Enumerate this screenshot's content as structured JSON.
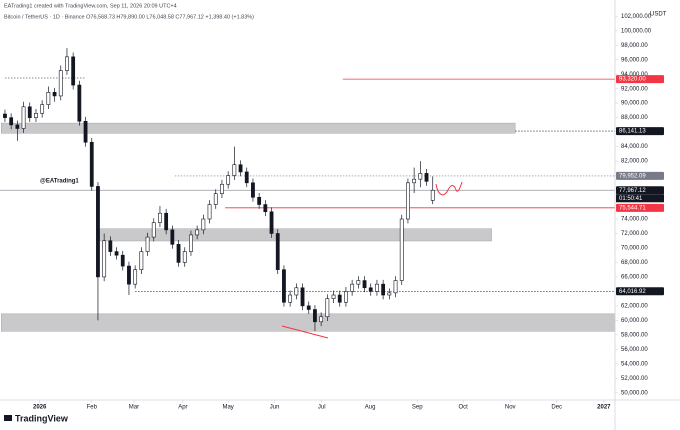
{
  "chart_data": {
    "type": "candlestick",
    "credit": "EATrading1 created with TradingView.com, Sep 11, 2026 20:09 UTC+4",
    "title": "Bitcoin / TetherUS · 1D · Binance  O76,568.73 H79,890.00 L76,048.58 C77,967.12 +1,398.40 (+1.83%)",
    "currency": "USDT",
    "watermark": "@EATrading1",
    "brand": "TradingView",
    "countdown": "01:50:41",
    "up_color": "#ffffff",
    "down_color": "#131722",
    "ohlc": [
      [
        88500,
        89100,
        87400,
        88000
      ],
      [
        88000,
        88600,
        86400,
        87000
      ],
      [
        87000,
        87600,
        84800,
        86500
      ],
      [
        86500,
        90200,
        85900,
        89500
      ],
      [
        89500,
        90100,
        87400,
        88000
      ],
      [
        88000,
        89200,
        87400,
        88600
      ],
      [
        88600,
        90400,
        88000,
        89800
      ],
      [
        89800,
        92300,
        89200,
        91500
      ],
      [
        91500,
        92100,
        90200,
        91000
      ],
      [
        91000,
        95200,
        90400,
        94500
      ],
      [
        94500,
        97600,
        93900,
        96400
      ],
      [
        96400,
        97000,
        91900,
        92500
      ],
      [
        92500,
        93100,
        86900,
        87500
      ],
      [
        87500,
        88100,
        84000,
        84600
      ],
      [
        84600,
        85200,
        77900,
        78500
      ],
      [
        78500,
        79100,
        60000,
        66000
      ],
      [
        66000,
        72000,
        65400,
        71000
      ],
      [
        71000,
        71600,
        68900,
        69500
      ],
      [
        69500,
        70100,
        68400,
        69000
      ],
      [
        69000,
        69600,
        66900,
        67500
      ],
      [
        67500,
        68100,
        63500,
        65000
      ],
      [
        65000,
        67600,
        64400,
        67000
      ],
      [
        67000,
        70100,
        66400,
        69500
      ],
      [
        69500,
        72100,
        68900,
        71500
      ],
      [
        71500,
        74100,
        70900,
        73500
      ],
      [
        73500,
        75800,
        72900,
        74800
      ],
      [
        74800,
        75400,
        71900,
        72500
      ],
      [
        72500,
        73100,
        69900,
        70500
      ],
      [
        70500,
        71100,
        67400,
        68000
      ],
      [
        68000,
        70100,
        67400,
        69500
      ],
      [
        69500,
        72400,
        68900,
        71800
      ],
      [
        71800,
        73100,
        71200,
        72500
      ],
      [
        72500,
        74600,
        71900,
        74000
      ],
      [
        74000,
        76600,
        73400,
        76000
      ],
      [
        76000,
        78100,
        75400,
        77500
      ],
      [
        77500,
        79400,
        76900,
        78800
      ],
      [
        78800,
        80600,
        78200,
        80000
      ],
      [
        80000,
        84000,
        79400,
        81500
      ],
      [
        81500,
        82100,
        79900,
        80500
      ],
      [
        80500,
        81100,
        78400,
        79000
      ],
      [
        79000,
        79600,
        76400,
        77000
      ],
      [
        77000,
        77600,
        75400,
        76000
      ],
      [
        76000,
        76600,
        74400,
        75000
      ],
      [
        75000,
        75600,
        71400,
        72000
      ],
      [
        72000,
        72600,
        66400,
        67000
      ],
      [
        67000,
        67600,
        61900,
        62500
      ],
      [
        62500,
        64100,
        61900,
        63500
      ],
      [
        63500,
        65100,
        62900,
        64500
      ],
      [
        64500,
        65100,
        61400,
        62000
      ],
      [
        62000,
        62600,
        60900,
        61500
      ],
      [
        61500,
        62100,
        58500,
        59800
      ],
      [
        59800,
        61100,
        59200,
        60500
      ],
      [
        60500,
        63600,
        59900,
        63000
      ],
      [
        63000,
        64100,
        62400,
        63500
      ],
      [
        63500,
        64100,
        61900,
        62500
      ],
      [
        62500,
        64600,
        61900,
        64000
      ],
      [
        64000,
        65600,
        63400,
        65000
      ],
      [
        65000,
        66100,
        64400,
        65500
      ],
      [
        65500,
        66100,
        63900,
        64500
      ],
      [
        64500,
        65100,
        63400,
        64000
      ],
      [
        64000,
        65600,
        63400,
        65000
      ],
      [
        65000,
        65600,
        62900,
        63500
      ],
      [
        63500,
        64400,
        62900,
        63800
      ],
      [
        63800,
        66100,
        63200,
        65500
      ],
      [
        65500,
        74600,
        64900,
        74000
      ],
      [
        74000,
        79600,
        73400,
        79000
      ],
      [
        79000,
        81100,
        77600,
        79500
      ],
      [
        79500,
        82000,
        78400,
        80300
      ],
      [
        80300,
        80900,
        78600,
        79200
      ],
      [
        76568.73,
        79890,
        76048.58,
        77967.12
      ]
    ],
    "xlim": [
      -0.8,
      98.4
    ],
    "xticks": [
      {
        "value": 5.6,
        "label": "2026"
      },
      {
        "value": 14.0,
        "label": "Feb"
      },
      {
        "value": 20.8,
        "label": "Mar"
      },
      {
        "value": 28.7,
        "label": "Apr"
      },
      {
        "value": 36.0,
        "label": "May"
      },
      {
        "value": 43.5,
        "label": "Jun"
      },
      {
        "value": 51.1,
        "label": "Jul"
      },
      {
        "value": 58.9,
        "label": "Aug"
      },
      {
        "value": 66.5,
        "label": "Sep"
      },
      {
        "value": 73.9,
        "label": "Oct"
      },
      {
        "value": 81.5,
        "label": "Nov"
      },
      {
        "value": 89.0,
        "label": "Dec"
      },
      {
        "value": 96.6,
        "label": "2027"
      }
    ],
    "ylim": [
      49000,
      104250
    ],
    "yticks": [
      {
        "value": 102000,
        "label": "102,000.00"
      },
      {
        "value": 100000,
        "label": "100,000.00"
      },
      {
        "value": 98000,
        "label": "98,000.00"
      },
      {
        "value": 96000,
        "label": "96,000.00"
      },
      {
        "value": 94000,
        "label": "94,000.00"
      },
      {
        "value": 92000,
        "label": "92,000.00"
      },
      {
        "value": 90000,
        "label": "90,000.00"
      },
      {
        "value": 88000,
        "label": "88,000.00"
      },
      {
        "value": 84000,
        "label": "84,000.00"
      },
      {
        "value": 82000,
        "label": "82,000.00"
      },
      {
        "value": 80000,
        "label": "80,000.00"
      },
      {
        "value": 74000,
        "label": "74,000.00"
      },
      {
        "value": 72000,
        "label": "72,000.00"
      },
      {
        "value": 70000,
        "label": "70,000.00"
      },
      {
        "value": 68000,
        "label": "68,000.00"
      },
      {
        "value": 66000,
        "label": "66,000.00"
      },
      {
        "value": 62000,
        "label": "62,000.00"
      },
      {
        "value": 60000,
        "label": "60,000.00"
      },
      {
        "value": 58000,
        "label": "58,000.00"
      },
      {
        "value": 56000,
        "label": "56,000.00"
      },
      {
        "value": 54000,
        "label": "54,000.00"
      },
      {
        "value": 52000,
        "label": "52,000.00"
      },
      {
        "value": 50000,
        "label": "50,000.00"
      }
    ],
    "price_lines": [
      {
        "value": 93320,
        "label": "93,320.00",
        "color": "#f23645",
        "style": "solid",
        "from": 54.5
      },
      {
        "value": 86141.13,
        "label": "86,141.13",
        "color": "#131722",
        "style": "dotted",
        "from": 82.3
      },
      {
        "value": 79952.09,
        "label": "79,952.09",
        "color": "#787b86",
        "style": "dotted",
        "from": 27.4
      },
      {
        "value": 77967.12,
        "label": "77,967.12",
        "color": "#131722",
        "style": "solid",
        "from": -0.8
      },
      {
        "value": 75544.71,
        "label": "75,544.71",
        "color": "#f23645",
        "style": "solid",
        "from": 35.5
      },
      {
        "value": 64016.92,
        "label": "64,016.92",
        "color": "#131722",
        "style": "dotted",
        "from": 21.0
      }
    ],
    "zones": [
      {
        "top": 87250,
        "bottom": 85840,
        "from": -0.6,
        "to": 82.3
      },
      {
        "top": 72660,
        "bottom": 70960,
        "from": 15.3,
        "to": 78.5
      },
      {
        "top": 60900,
        "bottom": 58500,
        "from": -0.6,
        "to": 98.4
      }
    ]
  }
}
